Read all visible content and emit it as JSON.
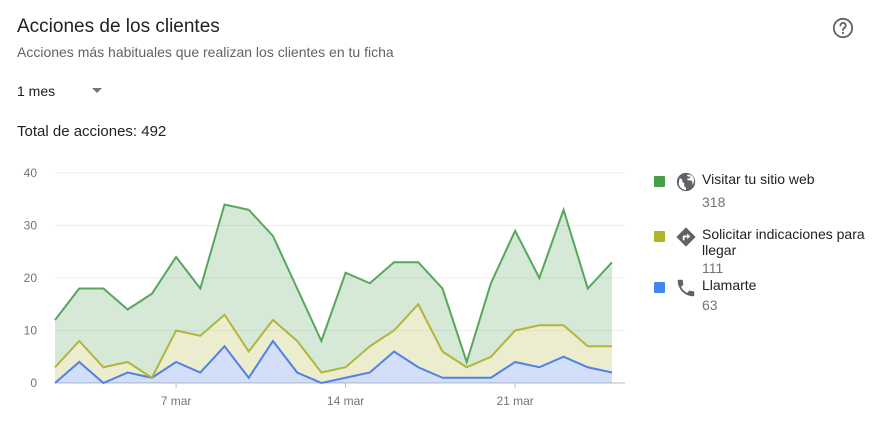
{
  "header": {
    "title": "Acciones de los clientes",
    "subtitle": "Acciones más habituales que realizan los clientes en tu ficha"
  },
  "filter": {
    "period": "1 mes"
  },
  "total": {
    "text": "Total de acciones: 492"
  },
  "chart_data": {
    "type": "area",
    "stacked": true,
    "title": "",
    "xlabel": "",
    "ylabel": "",
    "ylim": [
      0,
      40
    ],
    "yticks": [
      0,
      10,
      20,
      30,
      40
    ],
    "grid": true,
    "legend_position": "right",
    "x_tick_labels": [
      {
        "index": 5,
        "label": "7 mar"
      },
      {
        "index": 12,
        "label": "14 mar"
      },
      {
        "index": 19,
        "label": "21 mar"
      }
    ],
    "series": [
      {
        "name": "Llamarte",
        "color": "#4f81e8",
        "values": [
          0,
          4,
          0,
          2,
          1,
          4,
          2,
          7,
          1,
          8,
          2,
          0,
          1,
          2,
          6,
          3,
          1,
          1,
          1,
          4,
          3,
          5,
          3,
          2
        ]
      },
      {
        "name": "Solicitar indicaciones para llegar",
        "color": "#b1b63b",
        "values": [
          3,
          4,
          3,
          2,
          0,
          6,
          7,
          6,
          5,
          4,
          6,
          2,
          2,
          5,
          4,
          12,
          5,
          2,
          4,
          6,
          8,
          6,
          4,
          5
        ]
      },
      {
        "name": "Visitar tu sitio web",
        "color": "#57a65d",
        "values": [
          9,
          10,
          15,
          10,
          16,
          14,
          9,
          21,
          27,
          16,
          10,
          6,
          18,
          12,
          13,
          8,
          12,
          1,
          14,
          19,
          9,
          22,
          11,
          16
        ]
      }
    ]
  },
  "legend": [
    {
      "label": "Visitar tu sitio web",
      "value": "318",
      "color": "#43a047",
      "icon": "globe-icon"
    },
    {
      "label": "Solicitar indicaciones para llegar",
      "value": "111",
      "color": "#afb42b",
      "icon": "directions-icon"
    },
    {
      "label": "Llamarte",
      "value": "63",
      "color": "#4285f4",
      "icon": "phone-icon"
    }
  ]
}
